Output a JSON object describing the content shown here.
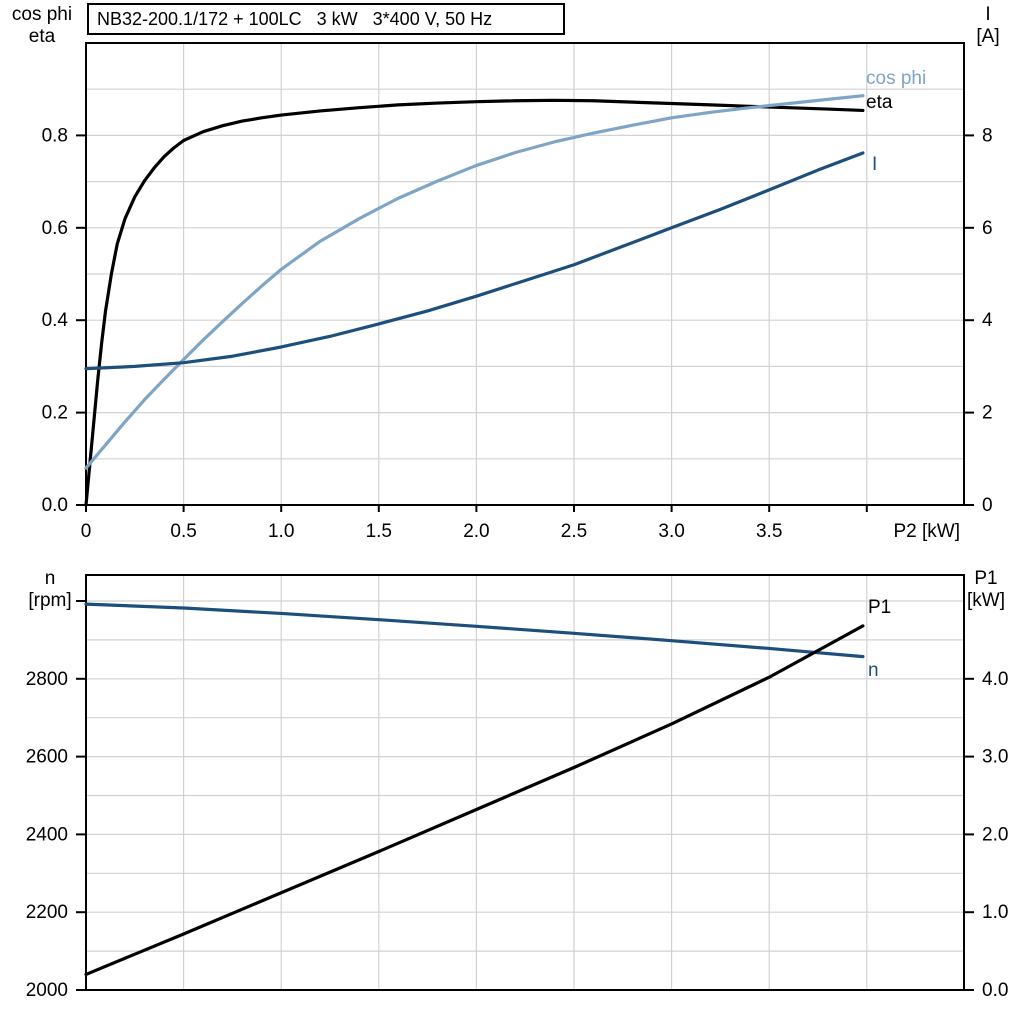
{
  "page": {
    "background": "#ffffff"
  },
  "colors": {
    "black": "#000000",
    "dark_blue": "#1d4f7c",
    "light_blue": "#7fa5c6",
    "grid": "#d2d2d2"
  },
  "chart_data": [
    {
      "type": "line",
      "title": "NB32-200.1/172 + 100LC   3 kW   3*400 V, 50 Hz",
      "x_axis": {
        "label": "P2 [kW]",
        "range": [
          0,
          4.5
        ],
        "grid_step": 0.5,
        "ticks": [
          [
            0,
            "0"
          ],
          [
            0.5,
            "0.5"
          ],
          [
            1,
            "1.0"
          ],
          [
            1.5,
            "1.5"
          ],
          [
            2,
            "2.0"
          ],
          [
            2.5,
            "2.5"
          ],
          [
            3,
            "3.0"
          ],
          [
            3.5,
            "3.5"
          ],
          [
            4,
            ""
          ]
        ]
      },
      "left_axis": {
        "title_lines": [
          "cos phi",
          "eta"
        ],
        "range": [
          0,
          1.0
        ],
        "grid_step": 0.1,
        "ticks": [
          [
            0,
            "0.0"
          ],
          [
            0.2,
            "0.2"
          ],
          [
            0.4,
            "0.4"
          ],
          [
            0.6,
            "0.6"
          ],
          [
            0.8,
            "0.8"
          ]
        ]
      },
      "right_axis": {
        "title_lines": [
          "I",
          "[A]"
        ],
        "range": [
          0,
          10
        ],
        "ticks": [
          [
            0,
            "0"
          ],
          [
            2,
            "2"
          ],
          [
            4,
            "4"
          ],
          [
            6,
            "6"
          ],
          [
            8,
            "8"
          ]
        ]
      },
      "grid": true,
      "legend_position": "right-inline",
      "series": [
        {
          "name": "eta",
          "label": "eta",
          "axis": "left",
          "color": "#000000",
          "points": [
            [
              0,
              0
            ],
            [
              0.02,
              0.09
            ],
            [
              0.04,
              0.18
            ],
            [
              0.06,
              0.27
            ],
            [
              0.08,
              0.35
            ],
            [
              0.1,
              0.42
            ],
            [
              0.13,
              0.5
            ],
            [
              0.16,
              0.565
            ],
            [
              0.2,
              0.62
            ],
            [
              0.25,
              0.667
            ],
            [
              0.3,
              0.702
            ],
            [
              0.35,
              0.73
            ],
            [
              0.4,
              0.754
            ],
            [
              0.45,
              0.773
            ],
            [
              0.5,
              0.789
            ],
            [
              0.6,
              0.808
            ],
            [
              0.7,
              0.821
            ],
            [
              0.8,
              0.831
            ],
            [
              0.9,
              0.838
            ],
            [
              1.0,
              0.844
            ],
            [
              1.2,
              0.853
            ],
            [
              1.4,
              0.86
            ],
            [
              1.6,
              0.866
            ],
            [
              1.8,
              0.87
            ],
            [
              2.0,
              0.873
            ],
            [
              2.2,
              0.875
            ],
            [
              2.4,
              0.876
            ],
            [
              2.6,
              0.875
            ],
            [
              2.8,
              0.872
            ],
            [
              3.0,
              0.869
            ],
            [
              3.2,
              0.866
            ],
            [
              3.4,
              0.863
            ],
            [
              3.6,
              0.86
            ],
            [
              3.8,
              0.857
            ],
            [
              3.98,
              0.854
            ]
          ]
        },
        {
          "name": "cos phi",
          "label": "cos phi",
          "axis": "left",
          "color": "#7fa5c6",
          "points": [
            [
              0,
              0.08
            ],
            [
              0.1,
              0.13
            ],
            [
              0.2,
              0.18
            ],
            [
              0.3,
              0.228
            ],
            [
              0.4,
              0.272
            ],
            [
              0.5,
              0.315
            ],
            [
              0.6,
              0.357
            ],
            [
              0.7,
              0.397
            ],
            [
              0.8,
              0.436
            ],
            [
              0.9,
              0.474
            ],
            [
              1.0,
              0.51
            ],
            [
              1.2,
              0.571
            ],
            [
              1.4,
              0.62
            ],
            [
              1.6,
              0.664
            ],
            [
              1.8,
              0.701
            ],
            [
              2.0,
              0.735
            ],
            [
              2.2,
              0.763
            ],
            [
              2.4,
              0.786
            ],
            [
              2.6,
              0.805
            ],
            [
              2.8,
              0.822
            ],
            [
              3.0,
              0.838
            ],
            [
              3.2,
              0.85
            ],
            [
              3.4,
              0.86
            ],
            [
              3.6,
              0.869
            ],
            [
              3.8,
              0.878
            ],
            [
              3.98,
              0.886
            ]
          ]
        },
        {
          "name": "I",
          "label": "I",
          "axis": "right",
          "color": "#1d4f7c",
          "points": [
            [
              0,
              2.95
            ],
            [
              0.25,
              3.0
            ],
            [
              0.5,
              3.08
            ],
            [
              0.75,
              3.22
            ],
            [
              1.0,
              3.42
            ],
            [
              1.25,
              3.65
            ],
            [
              1.5,
              3.92
            ],
            [
              1.75,
              4.2
            ],
            [
              2.0,
              4.52
            ],
            [
              2.25,
              4.86
            ],
            [
              2.5,
              5.2
            ],
            [
              2.75,
              5.6
            ],
            [
              3.0,
              6.0
            ],
            [
              3.25,
              6.4
            ],
            [
              3.5,
              6.82
            ],
            [
              3.75,
              7.25
            ],
            [
              3.98,
              7.62
            ]
          ]
        }
      ]
    },
    {
      "type": "line",
      "title": "",
      "x_axis": {
        "label": "",
        "range": [
          0,
          4.5
        ],
        "grid_step": 0.5,
        "ticks": [],
        "tick_labels_shown": false,
        "shared_with_top_chart": true
      },
      "left_axis": {
        "title_lines": [
          "n",
          "[rpm]"
        ],
        "range": [
          2000,
          3065
        ],
        "grid_step": 100,
        "ticks": [
          [
            2000,
            "2000"
          ],
          [
            2200,
            "2200"
          ],
          [
            2400,
            "2400"
          ],
          [
            2600,
            "2600"
          ],
          [
            2800,
            "2800"
          ],
          [
            3000,
            ""
          ]
        ]
      },
      "right_axis": {
        "title_lines": [
          "P1",
          "[kW]"
        ],
        "range": [
          0,
          5.33
        ],
        "grid_step": 0.5,
        "ticks": [
          [
            0,
            "0.0"
          ],
          [
            1,
            "1.0"
          ],
          [
            2,
            "2.0"
          ],
          [
            3,
            "3.0"
          ],
          [
            4,
            "4.0"
          ]
        ]
      },
      "grid": true,
      "legend_position": "right-inline",
      "series": [
        {
          "name": "n",
          "label": "n",
          "axis": "left",
          "color": "#1d4f7c",
          "points": [
            [
              0,
              2992
            ],
            [
              0.5,
              2982
            ],
            [
              1.0,
              2968
            ],
            [
              1.5,
              2952
            ],
            [
              2.0,
              2935
            ],
            [
              2.5,
              2917
            ],
            [
              3.0,
              2898
            ],
            [
              3.5,
              2878
            ],
            [
              3.98,
              2857
            ]
          ]
        },
        {
          "name": "P1",
          "label": "P1",
          "axis": "right",
          "color": "#000000",
          "points": [
            [
              0,
              0.2
            ],
            [
              0.5,
              0.72
            ],
            [
              1.0,
              1.25
            ],
            [
              1.5,
              1.78
            ],
            [
              2.0,
              2.32
            ],
            [
              2.5,
              2.86
            ],
            [
              3.0,
              3.42
            ],
            [
              3.5,
              4.02
            ],
            [
              3.98,
              4.68
            ]
          ]
        }
      ]
    }
  ]
}
